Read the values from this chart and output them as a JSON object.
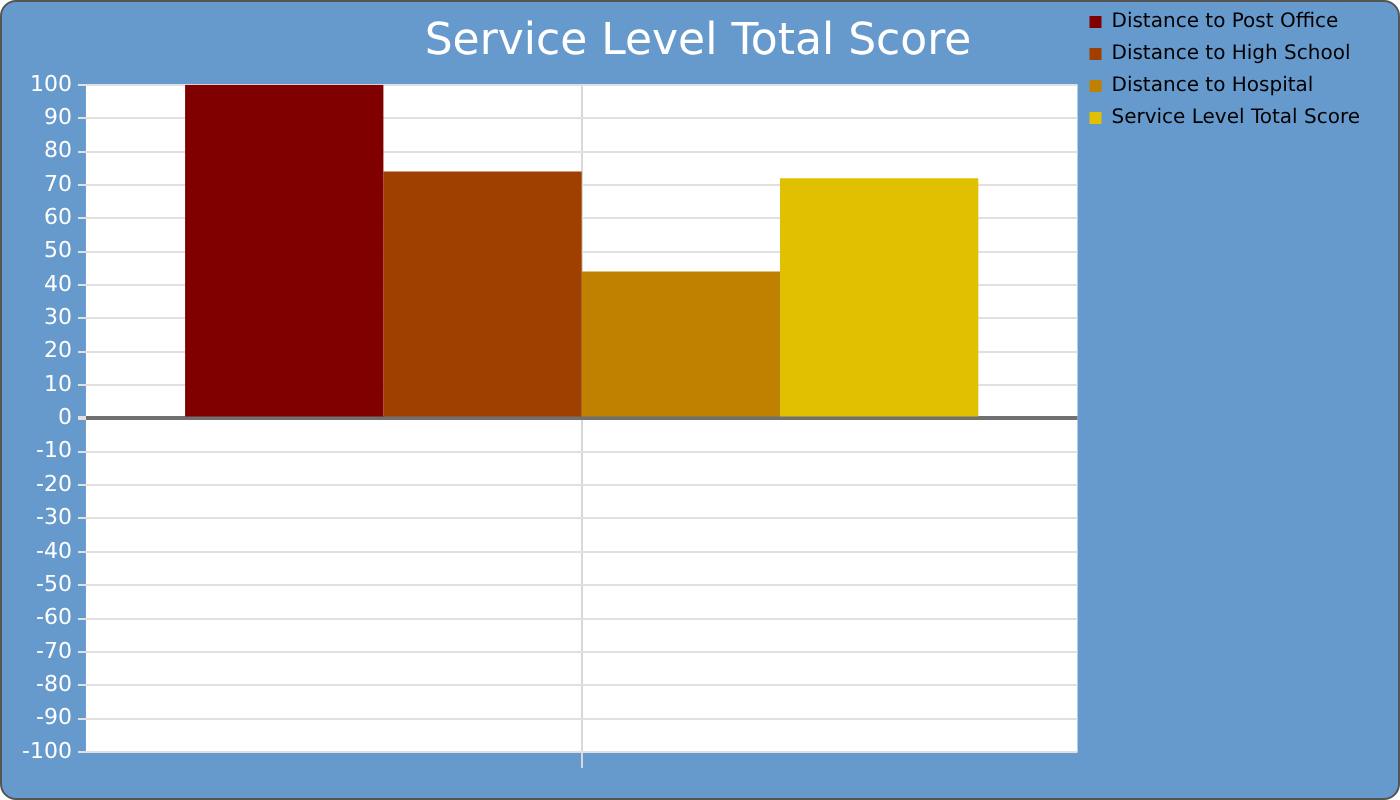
{
  "chart_data": {
    "type": "bar",
    "title": "Service Level Total Score",
    "categories": [
      null
    ],
    "series": [
      {
        "name": "Distance to Post Office",
        "color": "#800000",
        "values": [
          100
        ]
      },
      {
        "name": "Distance to High School",
        "color": "#a04000",
        "values": [
          74
        ]
      },
      {
        "name": "Distance to Hospital",
        "color": "#c08000",
        "values": [
          44
        ]
      },
      {
        "name": "Service Level Total Score",
        "color": "#e0c000",
        "values": [
          72
        ]
      }
    ],
    "ylim": [
      -100,
      100
    ],
    "yticks": [
      -100,
      -90,
      -80,
      -70,
      -60,
      -50,
      -40,
      -30,
      -20,
      -10,
      0,
      10,
      20,
      30,
      40,
      50,
      60,
      70,
      80,
      90,
      100
    ],
    "grid": true,
    "legend": "top right"
  }
}
